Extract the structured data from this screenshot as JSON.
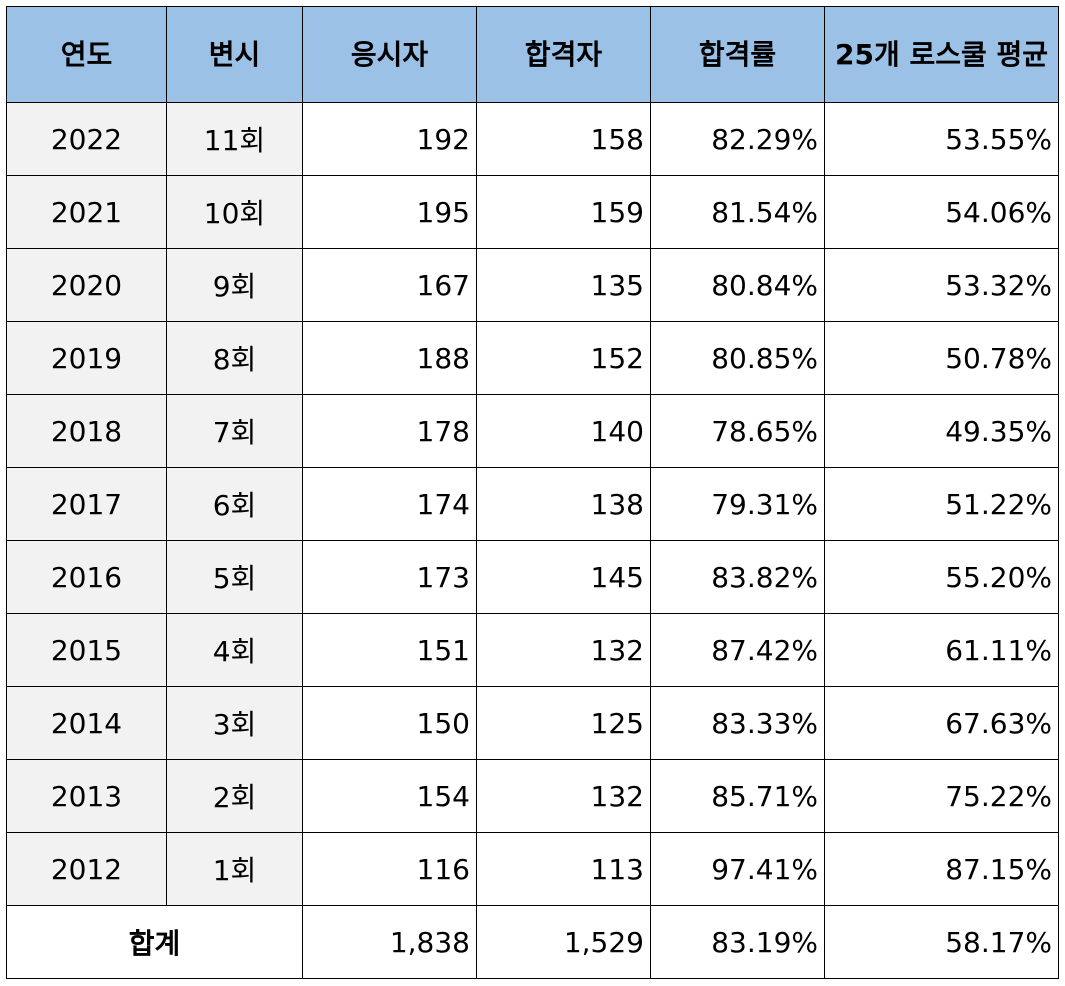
{
  "headers": [
    "연도",
    "변시",
    "응시자",
    "합격자",
    "합격률",
    "25개 로스쿨 평균"
  ],
  "rows": [
    {
      "year": "2022",
      "round": "11회",
      "applicants": "192",
      "passers": "158",
      "pass_rate": "82.29%",
      "avg": "53.55%"
    },
    {
      "year": "2021",
      "round": "10회",
      "applicants": "195",
      "passers": "159",
      "pass_rate": "81.54%",
      "avg": "54.06%"
    },
    {
      "year": "2020",
      "round": "9회",
      "applicants": "167",
      "passers": "135",
      "pass_rate": "80.84%",
      "avg": "53.32%"
    },
    {
      "year": "2019",
      "round": "8회",
      "applicants": "188",
      "passers": "152",
      "pass_rate": "80.85%",
      "avg": "50.78%"
    },
    {
      "year": "2018",
      "round": "7회",
      "applicants": "178",
      "passers": "140",
      "pass_rate": "78.65%",
      "avg": "49.35%"
    },
    {
      "year": "2017",
      "round": "6회",
      "applicants": "174",
      "passers": "138",
      "pass_rate": "79.31%",
      "avg": "51.22%"
    },
    {
      "year": "2016",
      "round": "5회",
      "applicants": "173",
      "passers": "145",
      "pass_rate": "83.82%",
      "avg": "55.20%"
    },
    {
      "year": "2015",
      "round": "4회",
      "applicants": "151",
      "passers": "132",
      "pass_rate": "87.42%",
      "avg": "61.11%"
    },
    {
      "year": "2014",
      "round": "3회",
      "applicants": "150",
      "passers": "125",
      "pass_rate": "83.33%",
      "avg": "67.63%"
    },
    {
      "year": "2013",
      "round": "2회",
      "applicants": "154",
      "passers": "132",
      "pass_rate": "85.71%",
      "avg": "75.22%"
    },
    {
      "year": "2012",
      "round": "1회",
      "applicants": "116",
      "passers": "113",
      "pass_rate": "97.41%",
      "avg": "87.15%"
    }
  ],
  "total": {
    "label": "합계",
    "applicants": "1,838",
    "passers": "1,529",
    "pass_rate": "83.19%",
    "avg": "58.17%"
  },
  "colors": {
    "header_bg": "#9bc2e6",
    "first_cols_bg": "#f2f2f2",
    "border": "#000000"
  }
}
